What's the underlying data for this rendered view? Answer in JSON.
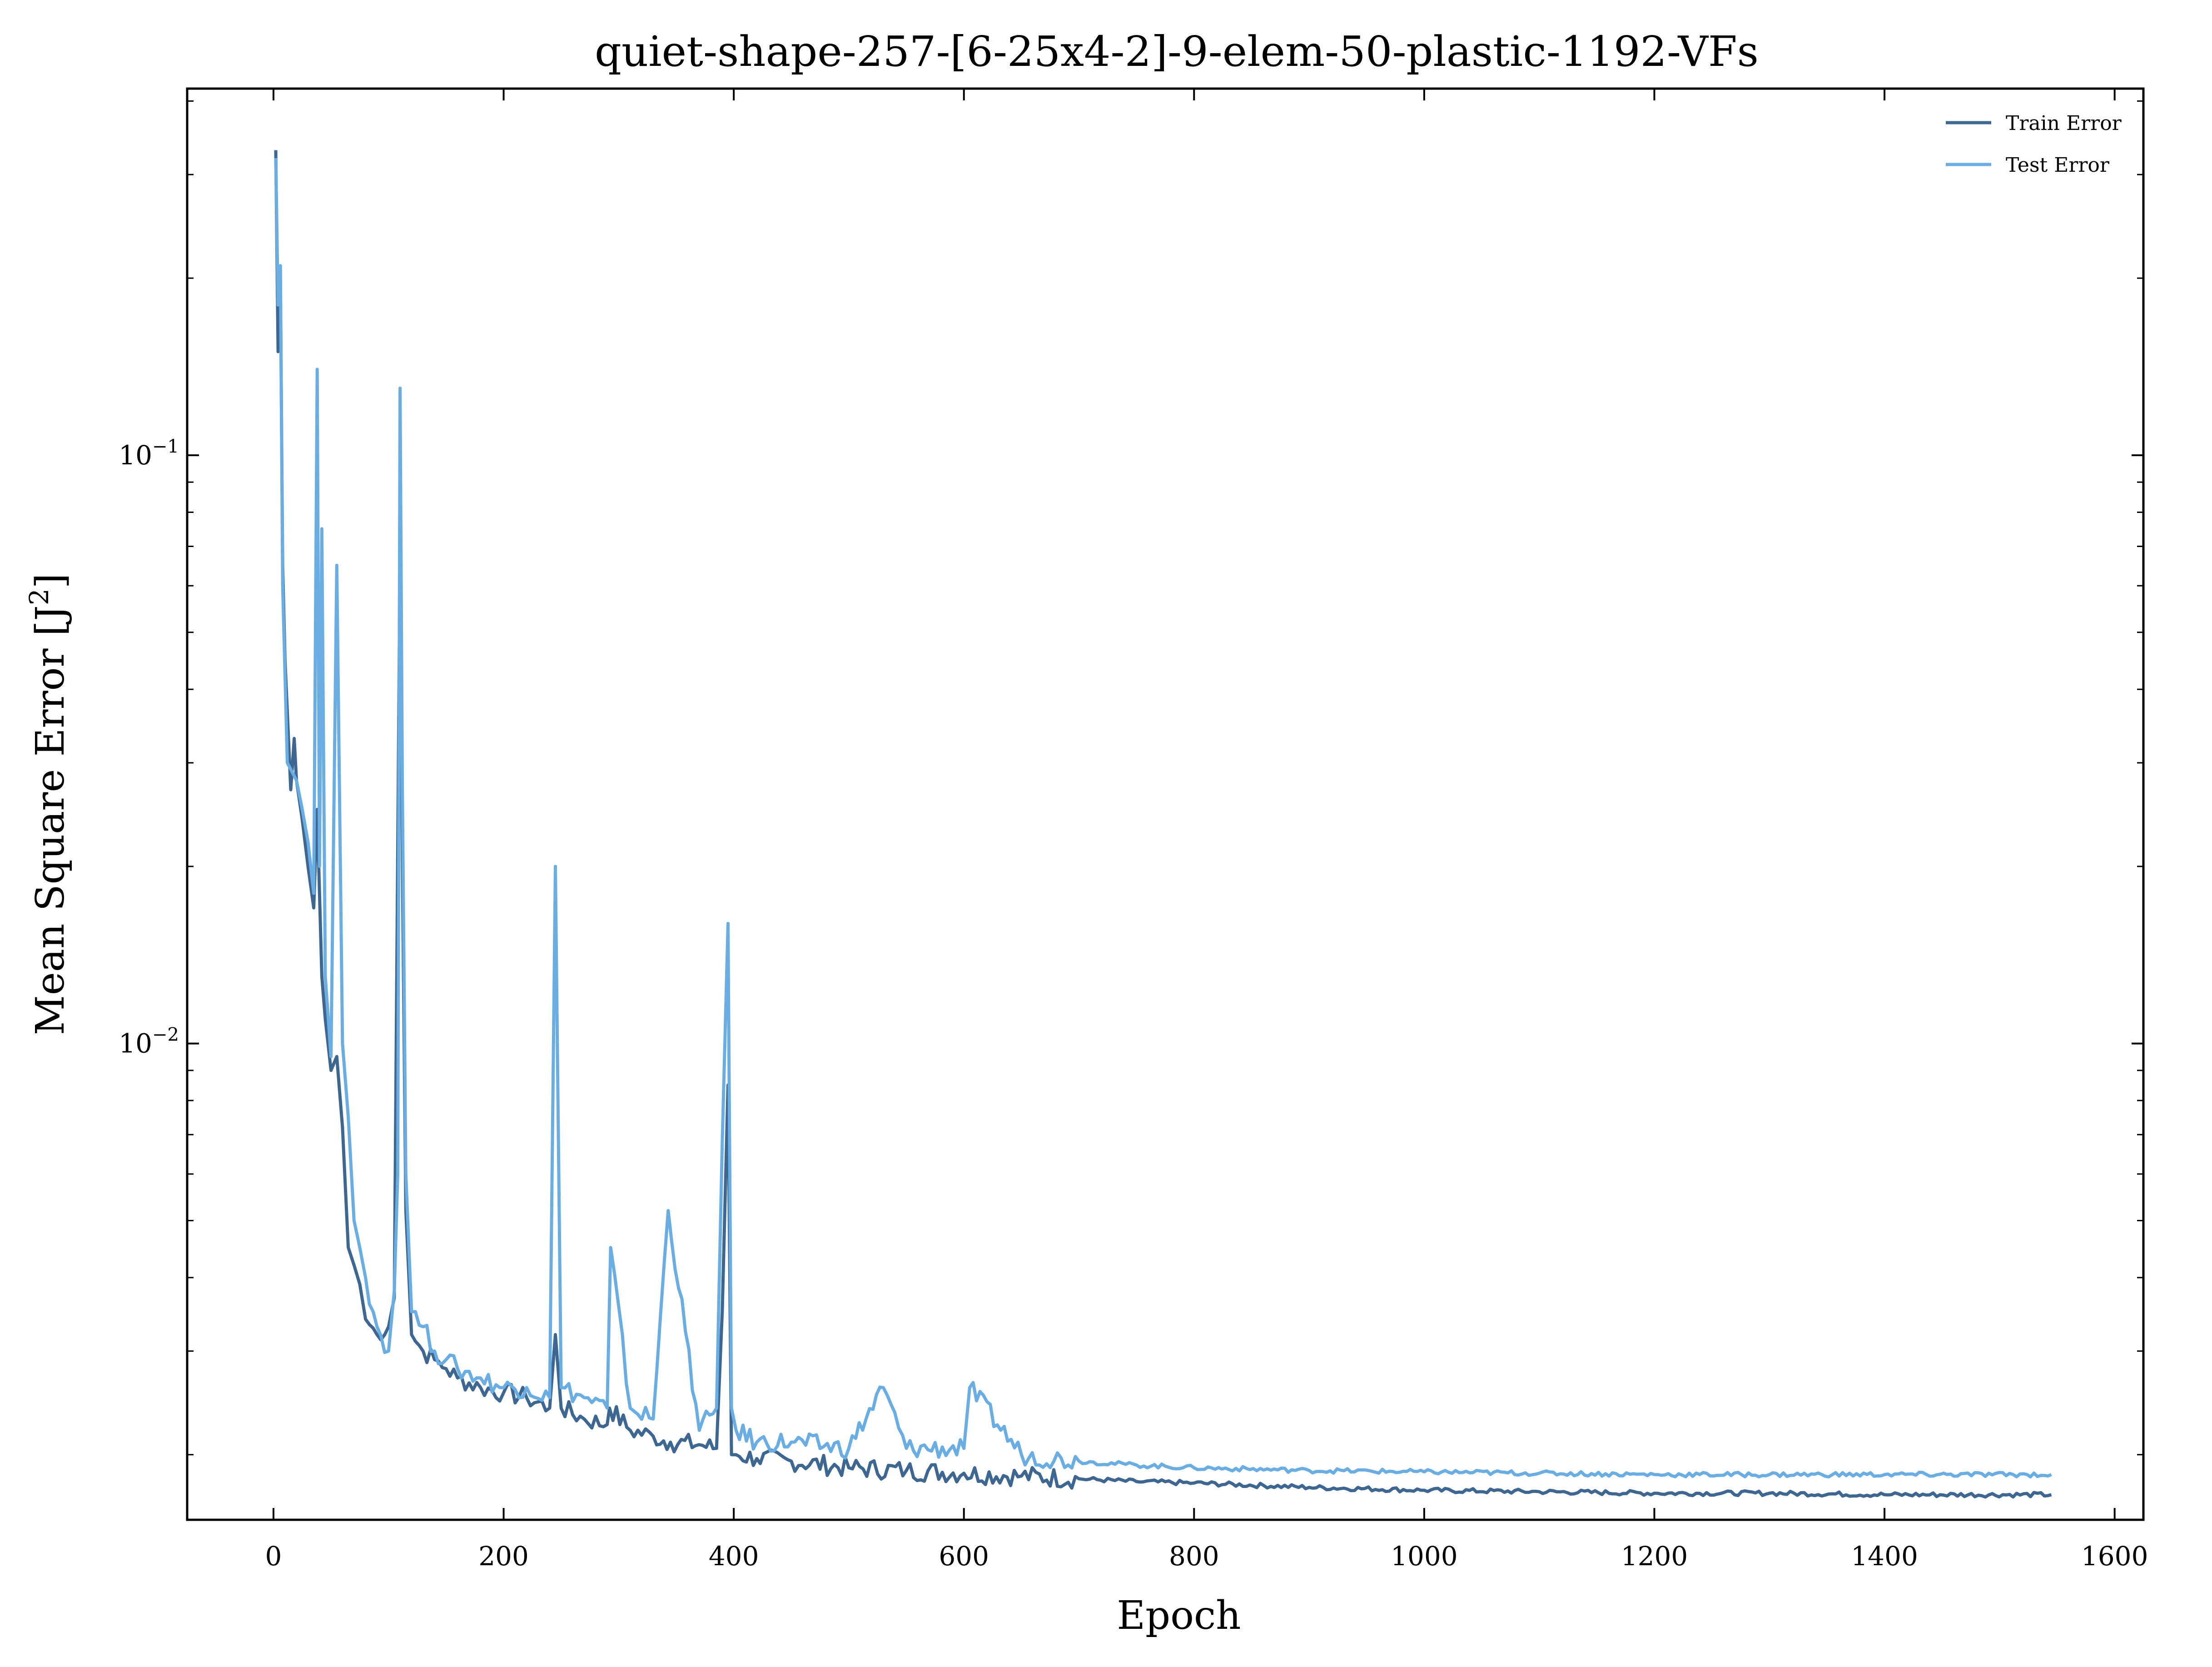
{
  "chart_data": {
    "type": "line",
    "title": "quiet-shape-257-[6-25x4-2]-9-elem-50-plastic-1192-VFs",
    "xlabel": "Epoch",
    "ylabel": "Mean Square Error [J",
    "ylabel_sup": "2",
    "ylabel_close": "]",
    "yscale": "log",
    "xlim": [
      -75,
      1625
    ],
    "ylim": [
      0.00155,
      0.42
    ],
    "x_ticks": [
      0,
      200,
      400,
      600,
      800,
      1000,
      1200,
      1400,
      1600
    ],
    "y_ticks": [
      {
        "value": 0.1,
        "base": "10",
        "exp": "−1"
      },
      {
        "value": 0.01,
        "base": "10",
        "exp": "−2"
      }
    ],
    "legend_position": "top-right",
    "series": [
      {
        "name": "Train Error",
        "color": "#3d6690",
        "x": [
          2,
          4,
          6,
          8,
          10,
          15,
          18,
          20,
          25,
          30,
          35,
          38,
          40,
          42,
          45,
          50,
          55,
          60,
          65,
          70,
          75,
          80,
          90,
          100,
          105,
          110,
          112,
          115,
          120,
          130,
          140,
          150,
          160,
          180,
          200,
          220,
          240,
          245,
          250,
          270,
          290,
          292,
          310,
          330,
          345,
          370,
          385,
          390,
          395,
          398,
          402,
          420,
          450,
          500,
          550,
          600,
          650,
          700,
          750,
          800,
          900,
          1000,
          1100,
          1200,
          1300,
          1400,
          1545
        ],
        "values": [
          0.33,
          0.15,
          0.2,
          0.065,
          0.045,
          0.027,
          0.033,
          0.028,
          0.024,
          0.02,
          0.017,
          0.025,
          0.018,
          0.013,
          0.011,
          0.009,
          0.0095,
          0.0072,
          0.0045,
          0.0042,
          0.0039,
          0.0034,
          0.0032,
          0.0033,
          0.0037,
          0.07,
          0.02,
          0.0052,
          0.0032,
          0.003,
          0.0029,
          0.0028,
          0.0027,
          0.0026,
          0.00255,
          0.0025,
          0.0024,
          0.0032,
          0.0024,
          0.0023,
          0.00225,
          0.0024,
          0.0022,
          0.00215,
          0.0021,
          0.00208,
          0.00205,
          0.0035,
          0.0085,
          0.002,
          0.002,
          0.00197,
          0.00195,
          0.0019,
          0.00188,
          0.00186,
          0.00184,
          0.00182,
          0.0018,
          0.00179,
          0.00176,
          0.00174,
          0.00173,
          0.00172,
          0.00172,
          0.00171,
          0.00171
        ]
      },
      {
        "name": "Test Error",
        "color": "#6aade3",
        "x": [
          2,
          4,
          6,
          8,
          12,
          16,
          20,
          25,
          30,
          35,
          38,
          40,
          42,
          45,
          50,
          55,
          60,
          65,
          70,
          75,
          80,
          90,
          100,
          105,
          108,
          110,
          112,
          115,
          120,
          130,
          140,
          150,
          160,
          180,
          200,
          220,
          240,
          245,
          250,
          270,
          290,
          293,
          310,
          330,
          343,
          370,
          385,
          390,
          395,
          398,
          402,
          420,
          450,
          500,
          530,
          550,
          600,
          605,
          650,
          700,
          750,
          800,
          900,
          1000,
          1100,
          1200,
          1300,
          1400,
          1545
        ],
        "values": [
          0.32,
          0.18,
          0.21,
          0.06,
          0.03,
          0.029,
          0.028,
          0.025,
          0.022,
          0.018,
          0.14,
          0.02,
          0.075,
          0.013,
          0.0095,
          0.065,
          0.01,
          0.0075,
          0.005,
          0.0045,
          0.004,
          0.0033,
          0.003,
          0.0038,
          0.006,
          0.13,
          0.027,
          0.006,
          0.0035,
          0.0033,
          0.003,
          0.0029,
          0.0028,
          0.0027,
          0.0026,
          0.0026,
          0.0025,
          0.02,
          0.0026,
          0.0025,
          0.0024,
          0.0045,
          0.0024,
          0.0023,
          0.0052,
          0.0022,
          0.0024,
          0.0068,
          0.016,
          0.0024,
          0.0022,
          0.0021,
          0.0021,
          0.00205,
          0.0026,
          0.00205,
          0.00205,
          0.0026,
          0.002,
          0.00195,
          0.00192,
          0.0019,
          0.00188,
          0.00187,
          0.00186,
          0.00185,
          0.00185,
          0.00185,
          0.00185
        ]
      }
    ]
  }
}
